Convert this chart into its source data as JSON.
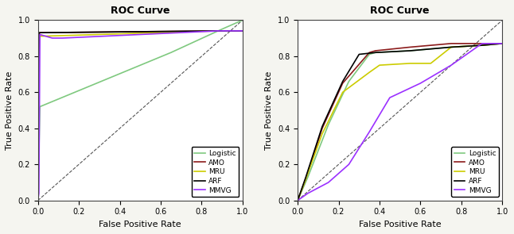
{
  "title": "ROC Curve",
  "xlabel": "False Positive Rate",
  "ylabel": "True Positive Rate",
  "colors": {
    "Logistic": "#7fc97f",
    "AMO": "#8b1a1a",
    "MRU": "#cccc00",
    "ARF": "#000000",
    "MMVG": "#9b30ff"
  },
  "legend_labels": [
    "Logistic",
    "AMO",
    "MRU",
    "ARF",
    "MMVG"
  ],
  "chart1": {
    "Logistic": {
      "x": [
        0.0,
        0.01,
        0.65,
        0.88,
        1.0
      ],
      "y": [
        0.0,
        0.52,
        0.82,
        0.94,
        1.0
      ]
    },
    "AMO": {
      "x": [
        0.0,
        0.005,
        0.01,
        0.88,
        1.0
      ],
      "y": [
        0.0,
        0.92,
        0.93,
        0.94,
        0.94
      ]
    },
    "MRU": {
      "x": [
        0.0,
        0.005,
        0.88,
        1.0
      ],
      "y": [
        0.0,
        0.91,
        0.94,
        0.94
      ]
    },
    "ARF": {
      "x": [
        0.0,
        0.005,
        0.88,
        1.0
      ],
      "y": [
        0.0,
        0.93,
        0.94,
        0.94
      ]
    },
    "MMVG": {
      "x": [
        0.0,
        0.005,
        0.01,
        0.07,
        0.12,
        0.88,
        1.0
      ],
      "y": [
        0.0,
        0.04,
        0.92,
        0.9,
        0.9,
        0.94,
        0.94
      ]
    }
  },
  "chart2": {
    "Logistic": {
      "x": [
        0.0,
        0.05,
        0.15,
        0.25,
        0.35,
        0.38,
        0.55,
        0.65,
        0.75,
        0.9,
        1.0
      ],
      "y": [
        0.0,
        0.13,
        0.42,
        0.66,
        0.81,
        0.82,
        0.83,
        0.84,
        0.85,
        0.86,
        0.87
      ]
    },
    "AMO": {
      "x": [
        0.0,
        0.04,
        0.12,
        0.22,
        0.35,
        0.38,
        0.55,
        0.65,
        0.75,
        0.9,
        1.0
      ],
      "y": [
        0.0,
        0.12,
        0.4,
        0.65,
        0.82,
        0.83,
        0.85,
        0.86,
        0.87,
        0.87,
        0.87
      ]
    },
    "MRU": {
      "x": [
        0.0,
        0.04,
        0.12,
        0.22,
        0.35,
        0.4,
        0.55,
        0.65,
        0.75,
        0.9,
        1.0
      ],
      "y": [
        0.0,
        0.12,
        0.37,
        0.6,
        0.71,
        0.75,
        0.76,
        0.76,
        0.85,
        0.86,
        0.87
      ]
    },
    "ARF": {
      "x": [
        0.0,
        0.04,
        0.12,
        0.22,
        0.3,
        0.38,
        0.55,
        0.65,
        0.75,
        0.9,
        1.0
      ],
      "y": [
        0.0,
        0.13,
        0.41,
        0.66,
        0.81,
        0.82,
        0.83,
        0.84,
        0.85,
        0.86,
        0.87
      ]
    },
    "MMVG": {
      "x": [
        0.0,
        0.05,
        0.15,
        0.25,
        0.35,
        0.45,
        0.6,
        0.75,
        0.9,
        1.0
      ],
      "y": [
        0.0,
        0.04,
        0.1,
        0.2,
        0.38,
        0.57,
        0.65,
        0.75,
        0.87,
        0.87
      ]
    }
  },
  "background": "#f5f5f0",
  "plot_bg": "#ffffff"
}
